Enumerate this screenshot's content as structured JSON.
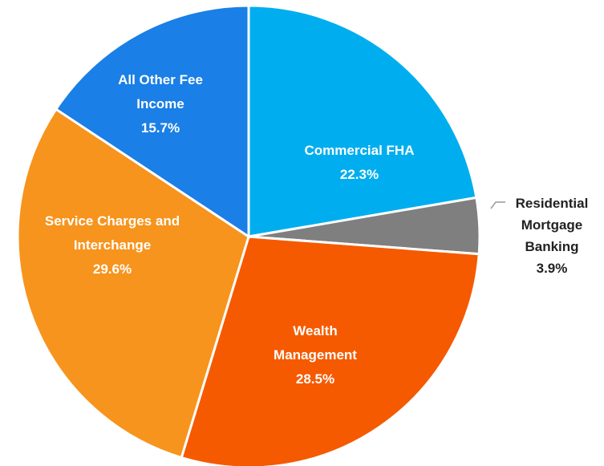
{
  "chart_data": {
    "type": "pie",
    "categories": [
      "Commercial FHA",
      "Residential Mortgage Banking",
      "Wealth Management",
      "Service Charges and Interchange",
      "All Other Fee Income"
    ],
    "values": [
      22.3,
      3.9,
      28.5,
      29.6,
      15.7
    ],
    "value_labels": [
      "22.3%",
      "3.9%",
      "28.5%",
      "29.6%",
      "15.7%"
    ],
    "colors": [
      "#00aeef",
      "#7f7f7f",
      "#f55a00",
      "#f7941d",
      "#1a7fe6"
    ]
  }
}
